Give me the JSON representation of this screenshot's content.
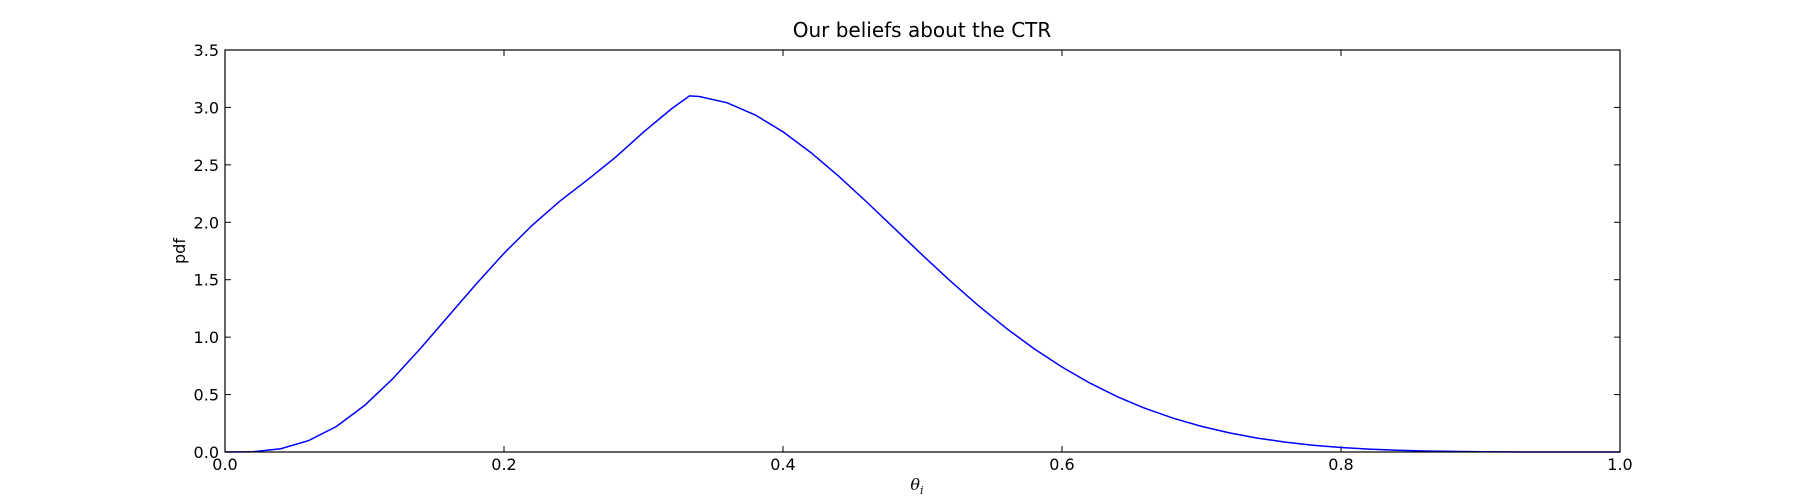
{
  "chart_data": {
    "type": "line",
    "title": "Our beliefs about the CTR",
    "xlabel": "θ",
    "xlabel_subscript": "i",
    "ylabel": "pdf",
    "xlim": [
      0.0,
      1.0
    ],
    "ylim": [
      0.0,
      3.5
    ],
    "x_ticks": [
      "0.0",
      "0.2",
      "0.4",
      "0.6",
      "0.8",
      "1.0"
    ],
    "y_ticks": [
      "0.0",
      "0.5",
      "1.0",
      "1.5",
      "2.0",
      "2.5",
      "3.0",
      "3.5"
    ],
    "grid": false,
    "series": [
      {
        "color": "#0000ff",
        "x": [
          0.0,
          0.02,
          0.04,
          0.06,
          0.08,
          0.1,
          0.12,
          0.14,
          0.16,
          0.18,
          0.2,
          0.22,
          0.24,
          0.26,
          0.28,
          0.3,
          0.32,
          0.333,
          0.34,
          0.36,
          0.38,
          0.4,
          0.42,
          0.44,
          0.46,
          0.48,
          0.5,
          0.52,
          0.54,
          0.56,
          0.58,
          0.6,
          0.62,
          0.64,
          0.66,
          0.68,
          0.7,
          0.72,
          0.74,
          0.76,
          0.78,
          0.8,
          0.82,
          0.84,
          0.86,
          0.88,
          0.9,
          0.92,
          0.94,
          0.96,
          0.98,
          1.0
        ],
        "y": [
          0.0,
          0.003,
          0.029,
          0.099,
          0.223,
          0.405,
          0.635,
          0.9,
          1.181,
          1.462,
          1.73,
          1.972,
          2.184,
          2.371,
          2.567,
          2.785,
          2.987,
          3.1,
          3.095,
          3.04,
          2.935,
          2.788,
          2.607,
          2.4,
          2.177,
          1.945,
          1.713,
          1.488,
          1.275,
          1.078,
          0.899,
          0.74,
          0.6,
          0.48,
          0.378,
          0.293,
          0.223,
          0.166,
          0.121,
          0.086,
          0.059,
          0.039,
          0.025,
          0.015,
          0.009,
          0.005,
          0.002,
          0.001,
          0.0,
          0.0,
          0.0,
          0.0
        ]
      }
    ]
  }
}
